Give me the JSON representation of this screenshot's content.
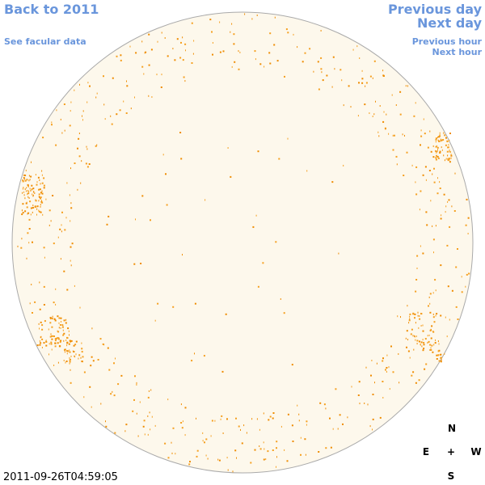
{
  "links": {
    "back_year": "Back to 2011",
    "facular_data": "See facular data",
    "previous_day": "Previous day",
    "next_day": "Next day",
    "previous_hour": "Previous hour",
    "next_hour": "Next hour"
  },
  "compass": {
    "north": "N",
    "east": "E",
    "center": "+",
    "west": "W",
    "south": "S"
  },
  "timestamp": "2011-09-26T04:59:05"
}
